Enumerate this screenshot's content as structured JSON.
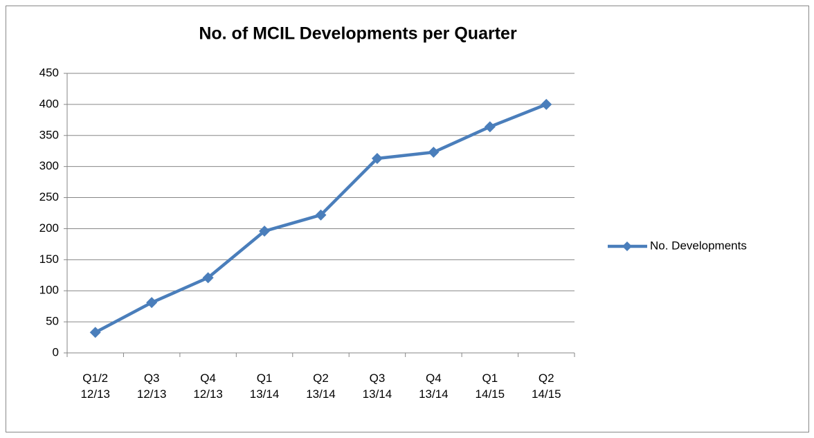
{
  "chart_data": {
    "type": "line",
    "title": "No. of MCIL Developments per Quarter",
    "categories": [
      "Q1/2\n12/13",
      "Q3\n12/13",
      "Q4\n12/13",
      "Q1\n13/14",
      "Q2\n13/14",
      "Q3\n13/14",
      "Q4\n13/14",
      "Q1\n14/15",
      "Q2\n14/15"
    ],
    "series": [
      {
        "name": "No. Developments",
        "color": "#4a7ebb",
        "values": [
          33,
          81,
          121,
          196,
          222,
          313,
          323,
          364,
          400
        ]
      }
    ],
    "ylim": [
      0,
      450
    ],
    "yticks": [
      0,
      50,
      100,
      150,
      200,
      250,
      300,
      350,
      400,
      450
    ],
    "grid": true,
    "legend": "right"
  }
}
